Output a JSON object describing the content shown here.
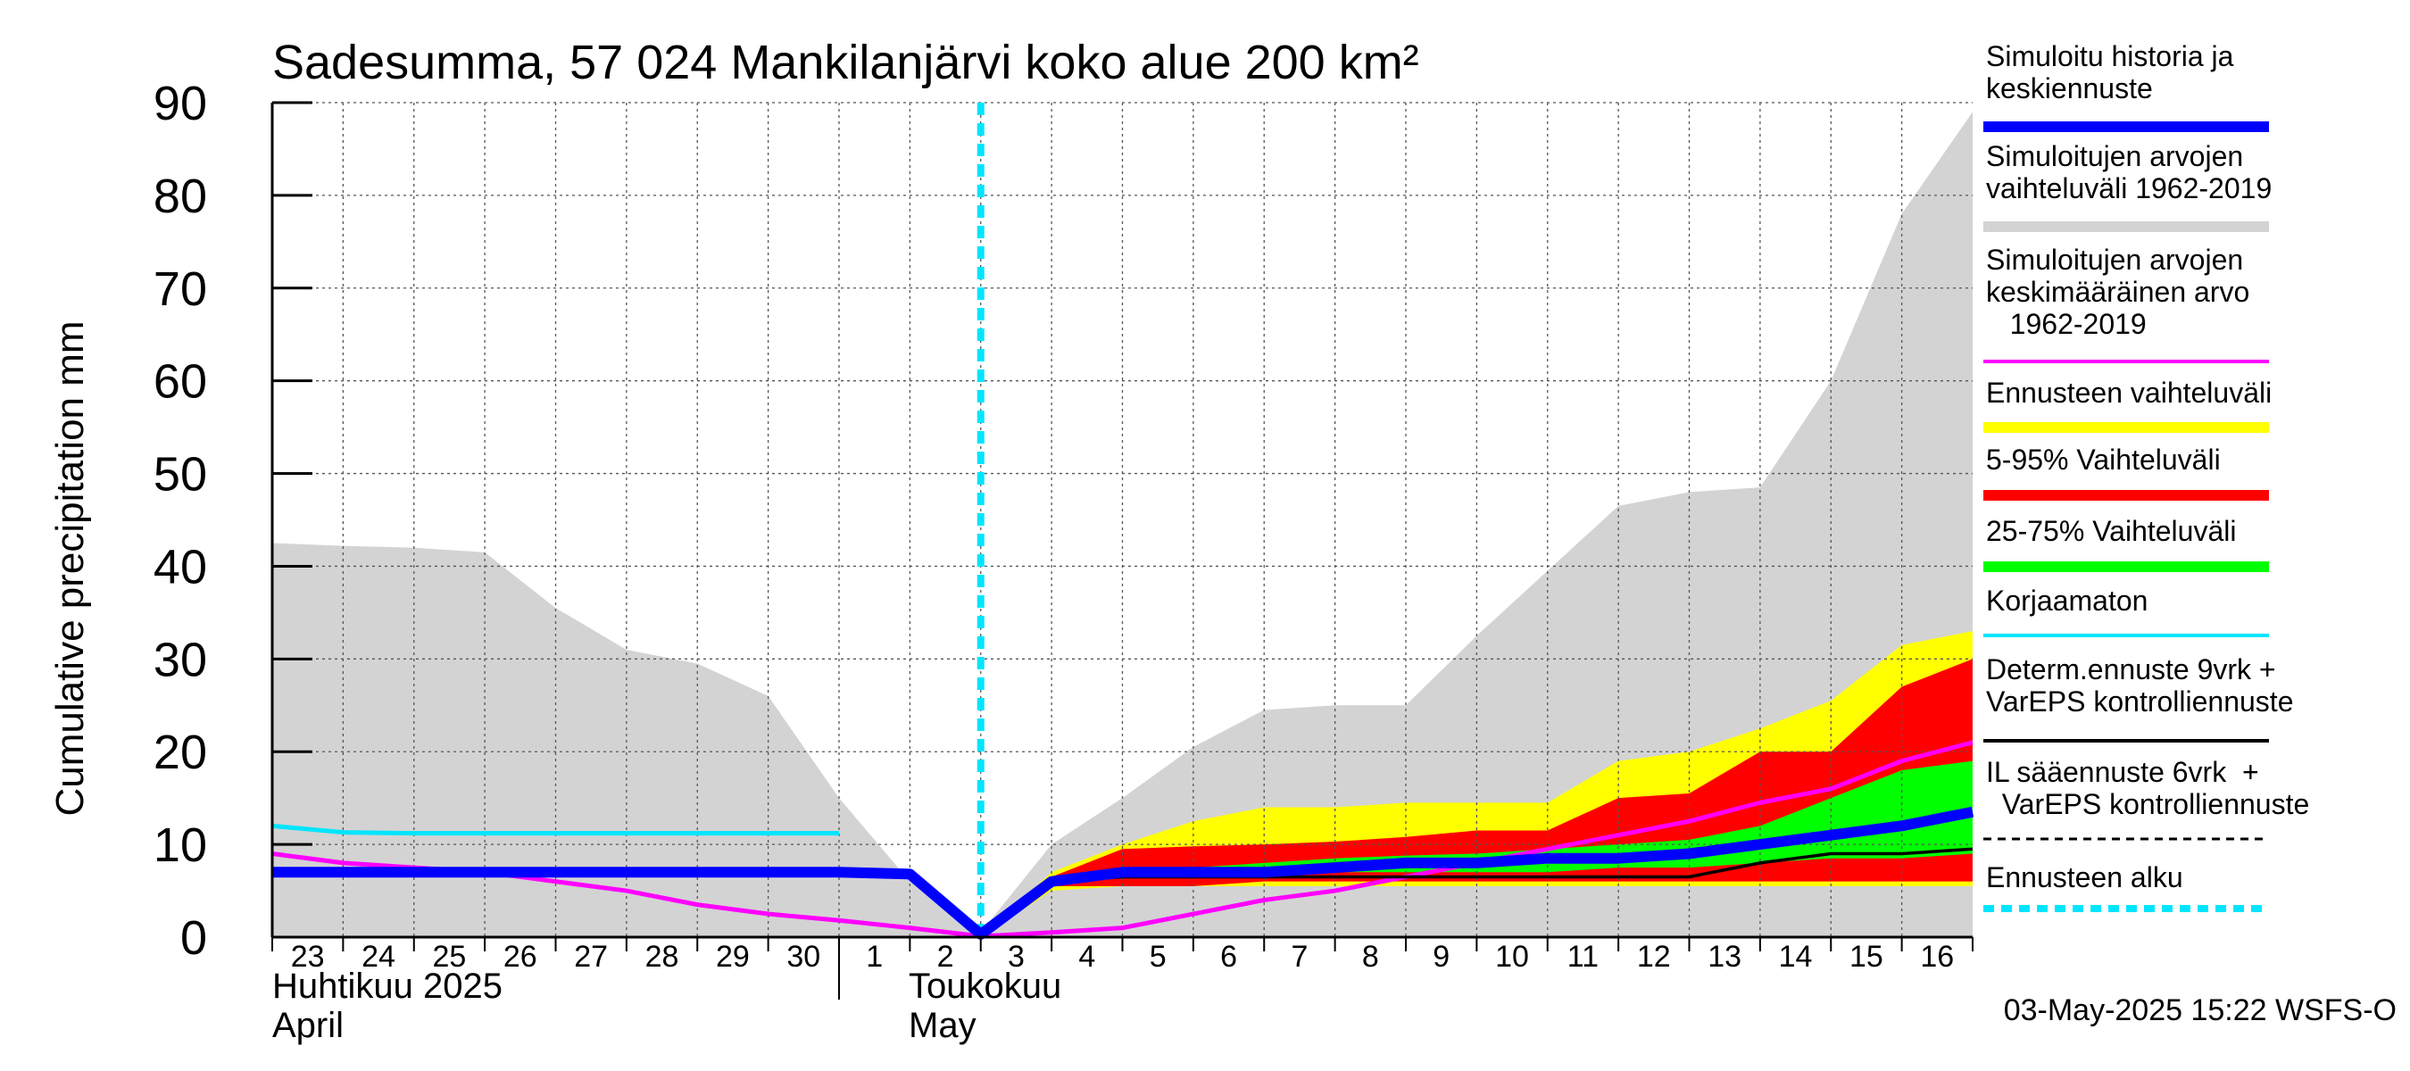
{
  "chart_data": {
    "type": "area",
    "title": "Sadesumma, 57 024 Mankilanjärvi koko alue 200 km²",
    "ylabel": "Cumulative precipitation   mm",
    "ylim": [
      0,
      90
    ],
    "yticks": [
      "0",
      "10",
      "20",
      "30",
      "40",
      "50",
      "60",
      "70",
      "80",
      "90"
    ],
    "xlim": [
      0,
      24
    ],
    "day_labels": [
      "23",
      "24",
      "25",
      "26",
      "27",
      "28",
      "29",
      "30",
      "1",
      "2",
      "3",
      "4",
      "5",
      "6",
      "7",
      "8",
      "9",
      "10",
      "11",
      "12",
      "13",
      "14",
      "15",
      "16"
    ],
    "month_labels": {
      "april_fi": "Huhtikuu  2025",
      "april_en": "April",
      "may_fi": "Toukokuu",
      "may_en": "May"
    },
    "forecast_start_x": 10,
    "series": [
      {
        "name": "Simuloitujen arvojen vaihteluväli 1962-2019",
        "kind": "band",
        "color": "#d3d3d3",
        "x": [
          0,
          1,
          2,
          3,
          4,
          5,
          6,
          7,
          8,
          9,
          10,
          11,
          12,
          13,
          14,
          15,
          16,
          17,
          18,
          19,
          20,
          21,
          22,
          23,
          24
        ],
        "lower": [
          0,
          0,
          0,
          0,
          0,
          0,
          0,
          0,
          0,
          0,
          0,
          0,
          0,
          0,
          0,
          0,
          0,
          0,
          0,
          0,
          0,
          0,
          0,
          0,
          0
        ],
        "upper": [
          42.5,
          42.2,
          42,
          41.5,
          35.5,
          31,
          29.5,
          26,
          15,
          6,
          0.5,
          10,
          15,
          20.5,
          24.5,
          25,
          25,
          32.5,
          39.5,
          46.5,
          48,
          48.5,
          60,
          78,
          89
        ]
      },
      {
        "name": "Ennusteen vaihteluväli",
        "kind": "band",
        "color": "#ffff00",
        "x": [
          10,
          11,
          12,
          13,
          14,
          15,
          16,
          17,
          18,
          19,
          20,
          21,
          22,
          23,
          24
        ],
        "lower": [
          0,
          5,
          5.5,
          5.5,
          5.5,
          5.5,
          5.5,
          5.5,
          5.5,
          5.5,
          5.5,
          5.5,
          5.5,
          5.5,
          5.5
        ],
        "upper": [
          0,
          7,
          10,
          12.5,
          14,
          14,
          14.5,
          14.5,
          14.5,
          19,
          20,
          22.5,
          25.5,
          31.5,
          33
        ]
      },
      {
        "name": "5-95% Vaihteluväli",
        "kind": "band",
        "color": "#ff0000",
        "x": [
          10,
          11,
          12,
          13,
          14,
          15,
          16,
          17,
          18,
          19,
          20,
          21,
          22,
          23,
          24
        ],
        "lower": [
          0,
          5.5,
          5.5,
          5.5,
          6,
          6,
          6,
          6,
          6,
          6,
          6,
          6,
          6,
          6,
          6
        ],
        "upper": [
          0,
          6.5,
          9.5,
          9.8,
          10,
          10.3,
          10.8,
          11.5,
          11.5,
          15,
          15.5,
          20,
          20,
          27,
          30
        ]
      },
      {
        "name": "25-75% Vaihteluväli",
        "kind": "band",
        "color": "#00ff00",
        "x": [
          10,
          11,
          12,
          13,
          14,
          15,
          16,
          17,
          18,
          19,
          20,
          21,
          22,
          23,
          24
        ],
        "lower": [
          0,
          6,
          6.5,
          6.5,
          7,
          7,
          7,
          7,
          7,
          7.5,
          7.5,
          8,
          8.5,
          8.5,
          9
        ],
        "upper": [
          0,
          6.5,
          7,
          7.5,
          8,
          8.5,
          8.8,
          9,
          9.5,
          10,
          10.5,
          12,
          15,
          18,
          19
        ]
      },
      {
        "name": "Simuloitujen arvojen keskimääräinen arvo 1962-2019",
        "kind": "line",
        "color": "#ff00ff",
        "x": [
          0,
          1,
          2,
          3,
          4,
          5,
          6,
          7,
          8,
          9,
          10,
          11,
          12,
          13,
          14,
          15,
          16,
          17,
          18,
          19,
          20,
          21,
          22,
          23,
          24
        ],
        "values": [
          9,
          8,
          7.5,
          7,
          6,
          5,
          3.5,
          2.5,
          1.8,
          1,
          0.1,
          0.5,
          1,
          2.5,
          4,
          5,
          6.5,
          8,
          9.5,
          11,
          12.5,
          14.5,
          16,
          19,
          21
        ]
      },
      {
        "name": "Korjaamaton",
        "kind": "line",
        "color": "#00e5ff",
        "x": [
          0,
          1,
          2,
          3,
          4,
          5,
          6,
          7,
          8
        ],
        "values": [
          12,
          11.3,
          11.2,
          11.2,
          11.2,
          11.2,
          11.2,
          11.2,
          11.2
        ]
      },
      {
        "name": "Determ.ennuste 9vrk + VarEPS kontrolliennuste",
        "kind": "line",
        "color": "#000000",
        "x": [
          10,
          11,
          12,
          13,
          14,
          15,
          16,
          17,
          18,
          19,
          20,
          21,
          22,
          23,
          24
        ],
        "values": [
          0,
          6,
          6.5,
          6.5,
          6.5,
          6.5,
          6.5,
          6.5,
          6.5,
          6.5,
          6.5,
          8,
          9,
          9,
          9.5
        ]
      },
      {
        "name": "Simuloitu historia ja keskiennuste",
        "kind": "line",
        "color": "#0000ff",
        "x": [
          0,
          1,
          2,
          3,
          4,
          5,
          6,
          7,
          8,
          9,
          10,
          11,
          12,
          13,
          14,
          15,
          16,
          17,
          18,
          19,
          20,
          21,
          22,
          23,
          24
        ],
        "values": [
          7,
          7,
          7,
          7,
          7,
          7,
          7,
          7,
          7,
          6.8,
          0.3,
          6,
          7,
          7,
          7,
          7.5,
          8,
          8,
          8.5,
          8.5,
          9,
          10,
          11,
          12,
          13.5
        ]
      }
    ],
    "footer": "03-May-2025 15:22 WSFS-O"
  },
  "legend": [
    {
      "lines": [
        "Simuloitu historia ja",
        "keskiennuste"
      ],
      "color": "#0000ff",
      "style": "thick"
    },
    {
      "lines": [
        "Simuloitujen arvojen",
        "vaihteluväli 1962-2019"
      ],
      "color": "#d3d3d3",
      "style": "thick"
    },
    {
      "lines": [
        "Simuloitujen arvojen",
        "keskimääräinen arvo",
        "   1962-2019"
      ],
      "color": "#ff00ff",
      "style": "thin"
    },
    {
      "lines": [
        "Ennusteen vaihteluväli"
      ],
      "color": "#ffff00",
      "style": "thick"
    },
    {
      "lines": [
        "5-95% Vaihteluväli"
      ],
      "color": "#ff0000",
      "style": "thick"
    },
    {
      "lines": [
        "25-75% Vaihteluväli"
      ],
      "color": "#00ff00",
      "style": "thick"
    },
    {
      "lines": [
        "Korjaamaton"
      ],
      "color": "#00e5ff",
      "style": "thin"
    },
    {
      "lines": [
        "Determ.ennuste 9vrk +",
        "VarEPS kontrolliennuste"
      ],
      "color": "#000000",
      "style": "thin"
    },
    {
      "lines": [
        "IL sääennuste 6vrk  +",
        "  VarEPS kontrolliennuste"
      ],
      "color": "#000000",
      "style": "dashed"
    },
    {
      "lines": [
        "Ennusteen alku"
      ],
      "color": "#00e5ff",
      "style": "dotted"
    }
  ]
}
